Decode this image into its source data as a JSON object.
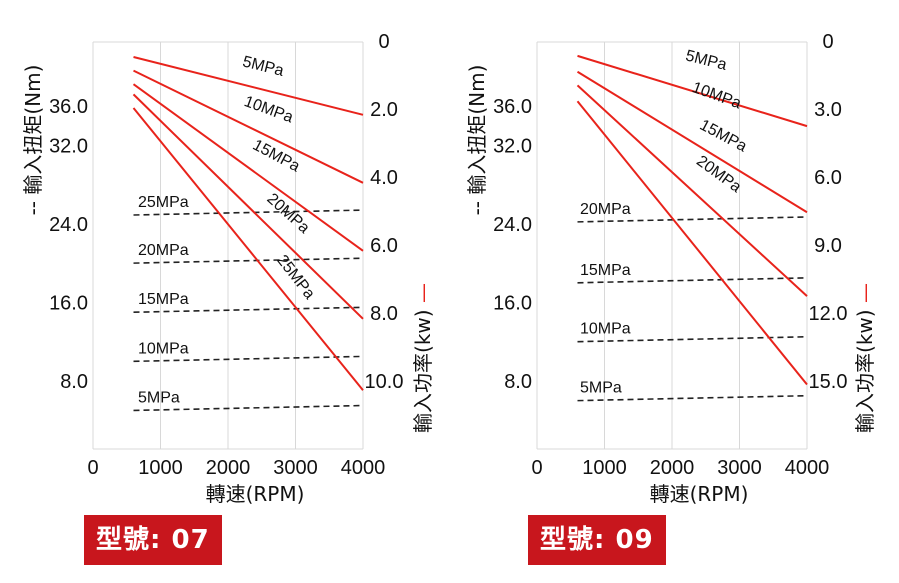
{
  "chart_data": [
    {
      "type": "line",
      "x_label": "轉速(RPM)",
      "y_left_label": "輸入扭矩(Nm)",
      "y_left_marker": "--",
      "y_right_label": "輸入功率(kw)",
      "y_right_marker": "—",
      "x_ticks": [
        "0",
        "1000",
        "2000",
        "3000",
        "4000"
      ],
      "x_range": [
        0,
        4000
      ],
      "y_left_ticks": [
        "8.0",
        "16.0",
        "24.0",
        "32.0",
        "36.0"
      ],
      "y_right_ticks": [
        "0",
        "2.0",
        "4.0",
        "6.0",
        "8.0",
        "10.0"
      ],
      "grid": true,
      "torque_series_style": "dashed-black",
      "power_series_style": "solid-red",
      "torque_series": [
        {
          "name": "25MPa",
          "x": [
            600,
            4000
          ],
          "y": [
            24.8,
            25.3
          ]
        },
        {
          "name": "20MPa",
          "x": [
            600,
            4000
          ],
          "y": [
            19.9,
            20.4
          ]
        },
        {
          "name": "15MPa",
          "x": [
            600,
            4000
          ],
          "y": [
            14.9,
            15.4
          ]
        },
        {
          "name": "10MPa",
          "x": [
            600,
            4000
          ],
          "y": [
            9.9,
            10.4
          ]
        },
        {
          "name": "5MPa",
          "x": [
            600,
            4000
          ],
          "y": [
            4.9,
            5.4
          ]
        }
      ],
      "power_series": [
        {
          "name": "5MPa",
          "x": [
            600,
            4000
          ],
          "y": [
            0.5,
            2.2
          ]
        },
        {
          "name": "10MPa",
          "x": [
            600,
            4000
          ],
          "y": [
            0.9,
            4.2
          ]
        },
        {
          "name": "15MPa",
          "x": [
            600,
            4000
          ],
          "y": [
            1.3,
            6.2
          ]
        },
        {
          "name": "20MPa",
          "x": [
            600,
            4000
          ],
          "y": [
            1.6,
            8.2
          ]
        },
        {
          "name": "25MPa",
          "x": [
            600,
            4000
          ],
          "y": [
            2.0,
            10.3
          ]
        }
      ],
      "model_prefix": "型號",
      "model_sep": ":",
      "model_value": "07"
    },
    {
      "type": "line",
      "x_label": "轉速(RPM)",
      "y_left_label": "輸入扭矩(Nm)",
      "y_left_marker": "--",
      "y_right_label": "輸入功率(kw)",
      "y_right_marker": "—",
      "x_ticks": [
        "0",
        "1000",
        "2000",
        "3000",
        "4000"
      ],
      "x_range": [
        0,
        4000
      ],
      "y_left_ticks": [
        "8.0",
        "16.0",
        "24.0",
        "32.0",
        "36.0"
      ],
      "y_right_ticks": [
        "0",
        "3.0",
        "6.0",
        "9.0",
        "12.0",
        "15.0"
      ],
      "grid": true,
      "torque_series_style": "dashed-black",
      "power_series_style": "solid-red",
      "torque_series": [
        {
          "name": "20MPa",
          "x": [
            600,
            4000
          ],
          "y": [
            24.1,
            24.6
          ]
        },
        {
          "name": "15MPa",
          "x": [
            600,
            4000
          ],
          "y": [
            17.9,
            18.4
          ]
        },
        {
          "name": "10MPa",
          "x": [
            600,
            4000
          ],
          "y": [
            11.9,
            12.4
          ]
        },
        {
          "name": "5MPa",
          "x": [
            600,
            4000
          ],
          "y": [
            5.9,
            6.4
          ]
        }
      ],
      "power_series": [
        {
          "name": "5MPa",
          "x": [
            600,
            4000
          ],
          "y": [
            0.7,
            3.8
          ]
        },
        {
          "name": "10MPa",
          "x": [
            600,
            4000
          ],
          "y": [
            1.4,
            7.6
          ]
        },
        {
          "name": "15MPa",
          "x": [
            600,
            4000
          ],
          "y": [
            2.0,
            11.3
          ]
        },
        {
          "name": "20MPa",
          "x": [
            600,
            4000
          ],
          "y": [
            2.7,
            15.2
          ]
        }
      ],
      "model_prefix": "型號",
      "model_sep": ":",
      "model_value": "09"
    }
  ],
  "colors": {
    "power_line": "#e8231b",
    "torque_line": "#222222",
    "grid": "#d8d8d8",
    "badge_bg": "#c8161d",
    "badge_text": "#ffffff"
  }
}
